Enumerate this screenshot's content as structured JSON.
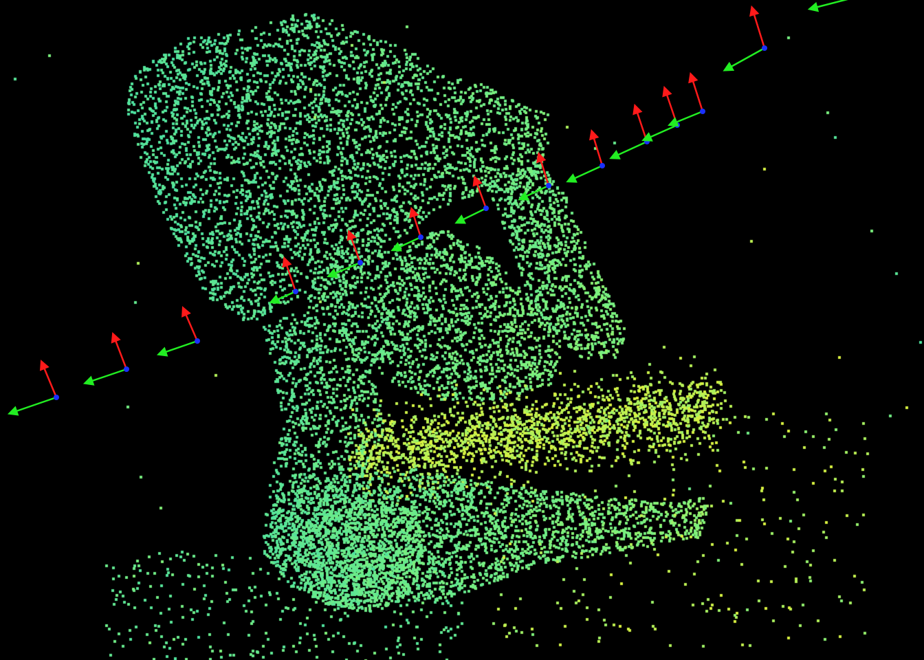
{
  "scene": {
    "background_color": "#000000",
    "point_colors": {
      "cool": "#4ce0a0",
      "mid": "#7cf07c",
      "warm": "#d8f040"
    },
    "axis_colors": {
      "x_axis": "#ff1a1a",
      "y_axis": "#22ee22",
      "origin_marker": "#1a30ff"
    },
    "camera_pose_count": 15,
    "icons": {
      "pose_marker": "coordinate-frame-icon"
    }
  }
}
